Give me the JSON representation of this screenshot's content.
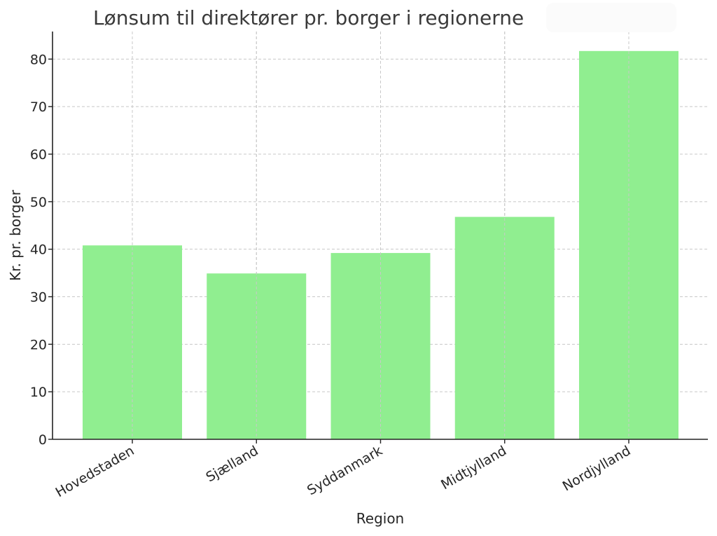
{
  "chart_data": {
    "type": "bar",
    "title": "Lønsum til direktører pr. borger i regionerne",
    "xlabel": "Region",
    "ylabel": "Kr. pr. borger",
    "categories": [
      "Hovedstaden",
      "Sjælland",
      "Syddanmark",
      "Midtjylland",
      "Nordjylland"
    ],
    "values": [
      40.8,
      34.9,
      39.2,
      46.8,
      81.7
    ],
    "ylim": [
      0,
      85.8
    ],
    "yticks": [
      0,
      10,
      20,
      30,
      40,
      50,
      60,
      70,
      80
    ],
    "grid": true,
    "bar_color": "#90ee90"
  }
}
